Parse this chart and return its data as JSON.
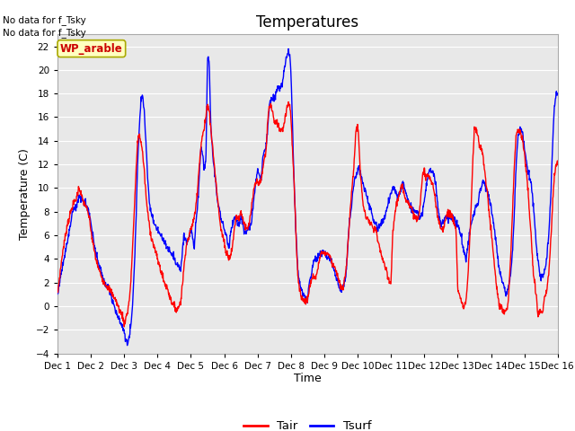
{
  "title": "Temperatures",
  "xlabel": "Time",
  "ylabel": "Temperature (C)",
  "ylim": [
    -4,
    23
  ],
  "yticks": [
    -4,
    -2,
    0,
    2,
    4,
    6,
    8,
    10,
    12,
    14,
    16,
    18,
    20,
    22
  ],
  "bg_color": "#e8e8e8",
  "fig_color": "#ffffff",
  "no_data_text1": "No data for f_Tsky",
  "no_data_text2": "No data for f_Tsky",
  "wp_label": "WP_arable",
  "tair_color": "#ff0000",
  "tsurf_color": "#0000ff",
  "xtick_labels": [
    "Dec 1",
    "Dec 2",
    "Dec 3",
    "Dec 4",
    "Dec 5",
    "Dec 6",
    "Dec 7",
    "Dec 8",
    "Dec 9",
    "Dec 10",
    "Dec 11",
    "Dec 12",
    "Dec 13",
    "Dec 14",
    "Dec 15",
    "Dec 16"
  ]
}
